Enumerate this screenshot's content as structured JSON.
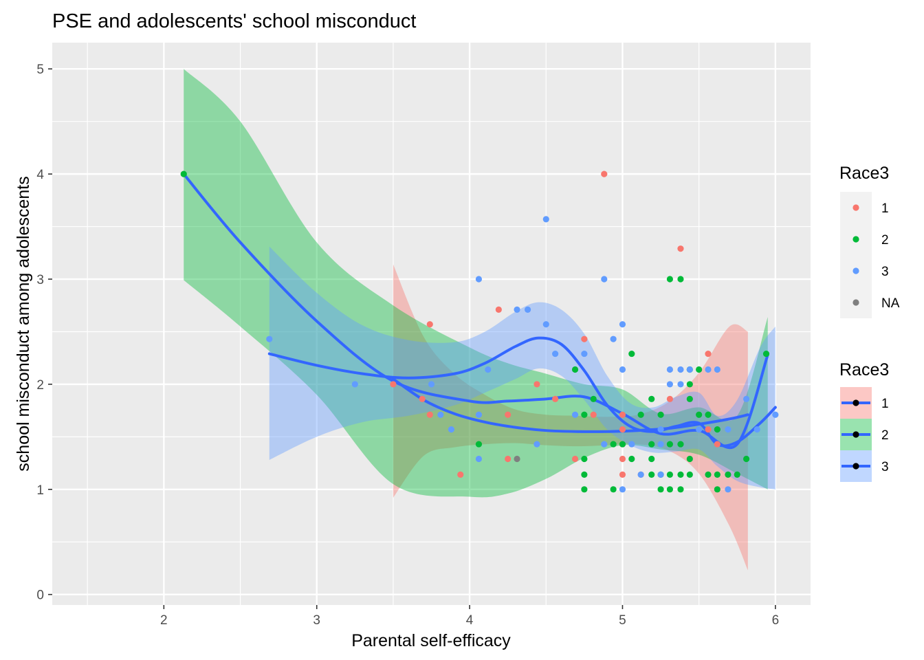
{
  "chart_data": {
    "type": "scatter",
    "title": "PSE and adolescents' school misconduct",
    "xlabel": "Parental self-efficacy",
    "ylabel": "school misconduct among adolescents",
    "xlim": [
      1.27,
      6.23
    ],
    "ylim": [
      -0.1,
      5.25
    ],
    "xticks": [
      2,
      3,
      4,
      5,
      6
    ],
    "yticks": [
      0,
      1,
      2,
      3,
      4,
      5
    ],
    "grid": true,
    "legend_position": "right",
    "colors": {
      "panel": "#EBEBEB",
      "grid_major": "#FFFFFF",
      "smooth_line": "#3366FF",
      "race_1": "#F8766D",
      "race_2": "#00BA38",
      "race_3": "#619CFF",
      "race_NA": "#7F7F7F"
    },
    "legend_points": {
      "title": "Race3",
      "entries": [
        {
          "label": "1",
          "color": "#F8766D"
        },
        {
          "label": "2",
          "color": "#00BA38"
        },
        {
          "label": "3",
          "color": "#619CFF"
        },
        {
          "label": "NA",
          "color": "#7F7F7F"
        }
      ]
    },
    "legend_smooth": {
      "title": "Race3",
      "entries": [
        {
          "label": "1",
          "fill": "#F8766D"
        },
        {
          "label": "2",
          "fill": "#00BA38"
        },
        {
          "label": "3",
          "fill": "#619CFF"
        }
      ]
    },
    "series": [
      {
        "name": "1",
        "color": "#F8766D",
        "points": [
          [
            3.5,
            2.0
          ],
          [
            3.69,
            1.86
          ],
          [
            3.74,
            2.57
          ],
          [
            3.74,
            1.71
          ],
          [
            3.94,
            1.14
          ],
          [
            4.19,
            2.71
          ],
          [
            4.25,
            1.71
          ],
          [
            4.25,
            1.29
          ],
          [
            4.44,
            2.0
          ],
          [
            4.56,
            1.86
          ],
          [
            4.69,
            1.29
          ],
          [
            4.75,
            2.43
          ],
          [
            4.81,
            1.71
          ],
          [
            4.88,
            4.0
          ],
          [
            5.0,
            1.71
          ],
          [
            5.0,
            1.57
          ],
          [
            5.0,
            1.43
          ],
          [
            5.0,
            1.29
          ],
          [
            5.0,
            1.14
          ],
          [
            5.12,
            1.14
          ],
          [
            5.31,
            1.86
          ],
          [
            5.38,
            3.29
          ],
          [
            5.56,
            2.29
          ],
          [
            5.56,
            1.57
          ],
          [
            5.62,
            1.43
          ]
        ],
        "smooth": {
          "x": [
            3.5,
            3.7,
            3.9,
            4.1,
            4.3,
            4.5,
            4.7,
            4.9,
            5.1,
            5.3,
            5.5,
            5.7,
            5.82
          ],
          "y": [
            2.05,
            1.85,
            1.72,
            1.64,
            1.59,
            1.56,
            1.55,
            1.55,
            1.56,
            1.58,
            1.62,
            1.67,
            1.71
          ],
          "lower": [
            0.92,
            1.32,
            1.4,
            1.43,
            1.44,
            1.42,
            1.41,
            1.42,
            1.43,
            1.37,
            1.15,
            0.65,
            0.23
          ],
          "upper": [
            3.14,
            2.45,
            2.1,
            1.9,
            1.76,
            1.71,
            1.7,
            1.69,
            1.71,
            1.83,
            2.11,
            2.55,
            2.5
          ]
        }
      },
      {
        "name": "2",
        "color": "#00BA38",
        "points": [
          [
            2.13,
            4.0
          ],
          [
            4.06,
            1.43
          ],
          [
            4.69,
            2.14
          ],
          [
            4.75,
            1.71
          ],
          [
            4.75,
            1.29
          ],
          [
            4.75,
            1.14
          ],
          [
            4.75,
            1.0
          ],
          [
            4.81,
            1.86
          ],
          [
            4.94,
            1.43
          ],
          [
            4.94,
            1.0
          ],
          [
            5.0,
            1.43
          ],
          [
            5.06,
            2.29
          ],
          [
            5.06,
            1.29
          ],
          [
            5.12,
            1.71
          ],
          [
            5.19,
            1.86
          ],
          [
            5.19,
            1.43
          ],
          [
            5.19,
            1.29
          ],
          [
            5.19,
            1.14
          ],
          [
            5.25,
            1.71
          ],
          [
            5.25,
            1.14
          ],
          [
            5.25,
            1.0
          ],
          [
            5.31,
            3.0
          ],
          [
            5.31,
            1.43
          ],
          [
            5.31,
            1.14
          ],
          [
            5.31,
            1.0
          ],
          [
            5.38,
            3.0
          ],
          [
            5.38,
            1.43
          ],
          [
            5.38,
            1.14
          ],
          [
            5.38,
            1.0
          ],
          [
            5.44,
            2.14
          ],
          [
            5.44,
            2.0
          ],
          [
            5.44,
            1.86
          ],
          [
            5.44,
            1.29
          ],
          [
            5.44,
            1.14
          ],
          [
            5.5,
            2.14
          ],
          [
            5.5,
            1.71
          ],
          [
            5.56,
            1.71
          ],
          [
            5.56,
            1.14
          ],
          [
            5.62,
            1.57
          ],
          [
            5.62,
            1.14
          ],
          [
            5.62,
            1.0
          ],
          [
            5.69,
            1.14
          ],
          [
            5.75,
            1.14
          ],
          [
            5.81,
            1.29
          ],
          [
            5.94,
            2.29
          ]
        ],
        "smooth": {
          "x": [
            2.13,
            2.5,
            3.0,
            3.5,
            4.0,
            4.25,
            4.5,
            4.75,
            5.0,
            5.25,
            5.5,
            5.75,
            5.95
          ],
          "y": [
            4.0,
            3.35,
            2.6,
            2.03,
            1.84,
            1.84,
            1.86,
            1.88,
            1.72,
            1.53,
            1.56,
            1.43,
            2.28
          ],
          "lower": [
            2.99,
            2.55,
            1.9,
            1.05,
            0.93,
            0.96,
            1.1,
            1.3,
            1.42,
            1.38,
            1.33,
            1.15,
            1.0
          ],
          "upper": [
            5.0,
            4.5,
            3.35,
            2.75,
            2.35,
            2.2,
            2.1,
            2.0,
            1.95,
            1.72,
            1.78,
            1.7,
            2.64
          ]
        }
      },
      {
        "name": "3",
        "color": "#619CFF",
        "points": [
          [
            2.69,
            2.43
          ],
          [
            3.25,
            2.0
          ],
          [
            3.75,
            2.0
          ],
          [
            3.81,
            1.71
          ],
          [
            3.88,
            1.57
          ],
          [
            4.06,
            3.0
          ],
          [
            4.06,
            1.71
          ],
          [
            4.06,
            1.29
          ],
          [
            4.12,
            2.14
          ],
          [
            4.31,
            2.71
          ],
          [
            4.38,
            2.71
          ],
          [
            4.44,
            1.43
          ],
          [
            4.5,
            3.57
          ],
          [
            4.5,
            2.57
          ],
          [
            4.56,
            2.29
          ],
          [
            4.69,
            1.71
          ],
          [
            4.75,
            2.29
          ],
          [
            4.88,
            3.0
          ],
          [
            4.88,
            1.43
          ],
          [
            4.94,
            2.43
          ],
          [
            5.0,
            2.57
          ],
          [
            5.0,
            2.14
          ],
          [
            5.0,
            1.0
          ],
          [
            5.06,
            1.43
          ],
          [
            5.12,
            1.14
          ],
          [
            5.25,
            1.57
          ],
          [
            5.25,
            1.43
          ],
          [
            5.25,
            1.14
          ],
          [
            5.31,
            2.14
          ],
          [
            5.31,
            2.0
          ],
          [
            5.38,
            2.14
          ],
          [
            5.38,
            2.0
          ],
          [
            5.44,
            2.14
          ],
          [
            5.5,
            1.57
          ],
          [
            5.56,
            2.14
          ],
          [
            5.62,
            2.14
          ],
          [
            5.69,
            1.57
          ],
          [
            5.69,
            1.0
          ],
          [
            5.81,
            1.86
          ],
          [
            5.88,
            1.57
          ],
          [
            6.0,
            1.71
          ]
        ],
        "smooth": {
          "x": [
            2.69,
            3.0,
            3.3,
            3.6,
            3.9,
            4.1,
            4.3,
            4.45,
            4.6,
            4.75,
            4.9,
            5.05,
            5.2,
            5.35,
            5.5,
            5.62,
            5.75,
            5.9,
            6.0
          ],
          "y": [
            2.29,
            2.18,
            2.1,
            2.06,
            2.1,
            2.2,
            2.36,
            2.44,
            2.38,
            2.13,
            1.8,
            1.6,
            1.55,
            1.6,
            1.63,
            1.43,
            1.45,
            1.63,
            1.78
          ],
          "lower": [
            1.28,
            1.5,
            1.64,
            1.7,
            1.8,
            1.92,
            2.05,
            2.15,
            2.08,
            1.85,
            1.57,
            1.42,
            1.35,
            1.36,
            1.38,
            1.22,
            1.08,
            1.02,
            1.0
          ],
          "upper": [
            3.31,
            2.87,
            2.56,
            2.42,
            2.4,
            2.5,
            2.69,
            2.78,
            2.71,
            2.48,
            2.08,
            1.82,
            1.78,
            1.88,
            1.92,
            1.7,
            1.85,
            2.35,
            2.55
          ]
        }
      },
      {
        "name": "NA",
        "color": "#7F7F7F",
        "points": [
          [
            4.31,
            1.29
          ]
        ]
      }
    ]
  }
}
